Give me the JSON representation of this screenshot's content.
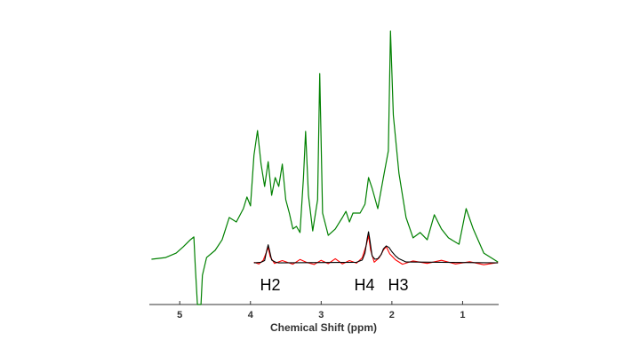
{
  "chart_data": {
    "type": "line",
    "xlabel": "Chemical Shift (ppm)",
    "xlim": [
      5.43,
      0.49
    ],
    "xticks": [
      5,
      4,
      3,
      2,
      1
    ],
    "ylim": [
      0,
      100
    ],
    "annotations": [
      "H2",
      "H4",
      "H3"
    ],
    "series": [
      {
        "color": "#008000",
        "x": [
          5.4,
          5.2,
          5.05,
          4.95,
          4.85,
          4.8,
          4.78,
          4.75,
          4.7,
          4.68,
          4.62,
          4.5,
          4.4,
          4.3,
          4.2,
          4.1,
          4.05,
          4.0,
          3.95,
          3.9,
          3.85,
          3.8,
          3.75,
          3.7,
          3.65,
          3.6,
          3.55,
          3.5,
          3.45,
          3.4,
          3.35,
          3.3,
          3.25,
          3.22,
          3.18,
          3.12,
          3.05,
          3.02,
          2.98,
          2.9,
          2.8,
          2.7,
          2.65,
          2.6,
          2.55,
          2.45,
          2.38,
          2.33,
          2.28,
          2.2,
          2.12,
          2.05,
          2.02,
          1.98,
          1.9,
          1.8,
          1.7,
          1.6,
          1.5,
          1.4,
          1.3,
          1.2,
          1.05,
          0.95,
          0.85,
          0.7,
          0.5
        ],
        "values": [
          16.3,
          16.9,
          18.5,
          20.8,
          23.3,
          24.3,
          13.7,
          0,
          0,
          10.5,
          16.9,
          19.5,
          23.3,
          31.3,
          29.7,
          34.5,
          38.7,
          35.5,
          53.7,
          62.6,
          50.5,
          42.5,
          51.4,
          39.3,
          45.7,
          42.5,
          50.5,
          37.7,
          32.9,
          27.2,
          28.1,
          25.9,
          45.7,
          62.3,
          39.3,
          26.5,
          37.7,
          83.1,
          32.9,
          24.9,
          27.2,
          31.3,
          33.5,
          29.7,
          32.9,
          32.9,
          36.1,
          45.7,
          41.9,
          34.5,
          45.7,
          55.3,
          98.4,
          68.1,
          47.3,
          31.3,
          24.0,
          25.9,
          23.3,
          32.3,
          27.2,
          24.0,
          21.7,
          34.5,
          27.2,
          18.5,
          15.3
        ]
      },
      {
        "color": "#ff0000",
        "x": [
          3.95,
          3.88,
          3.82,
          3.78,
          3.75,
          3.72,
          3.66,
          3.55,
          3.4,
          3.3,
          3.2,
          3.1,
          3.0,
          2.9,
          2.8,
          2.7,
          2.6,
          2.5,
          2.42,
          2.36,
          2.33,
          2.3,
          2.25,
          2.18,
          2.12,
          2.08,
          2.03,
          1.95,
          1.85,
          1.7,
          1.5,
          1.3,
          1.1,
          0.9,
          0.7,
          0.5
        ],
        "values": [
          15.2,
          14.6,
          15.9,
          18.5,
          20.5,
          17.2,
          14.8,
          15.8,
          14.5,
          16.2,
          15.1,
          14.4,
          15.9,
          14.7,
          16.5,
          14.6,
          15.8,
          14.9,
          16.8,
          21.5,
          24.8,
          19.5,
          15.2,
          16.8,
          19.6,
          20.8,
          18.2,
          16.1,
          14.5,
          15.7,
          14.8,
          15.9,
          14.6,
          15.4,
          14.3,
          15.1
        ]
      },
      {
        "color": "#000000",
        "x": [
          3.95,
          3.85,
          3.8,
          3.77,
          3.75,
          3.73,
          3.7,
          3.65,
          3.6,
          2.5,
          2.42,
          2.38,
          2.35,
          2.33,
          2.31,
          2.28,
          2.24,
          2.2,
          2.15,
          2.12,
          2.08,
          2.04,
          2.0,
          1.95,
          1.9,
          1.8,
          0.5
        ],
        "values": [
          15,
          15.2,
          15.8,
          19.5,
          21.5,
          19.5,
          16,
          15.3,
          15,
          15.2,
          16,
          18.5,
          23.5,
          26.2,
          23,
          17.5,
          16.3,
          16.5,
          18,
          20,
          21.1,
          20.5,
          19,
          17.5,
          16.5,
          15.3,
          15
        ]
      }
    ]
  }
}
